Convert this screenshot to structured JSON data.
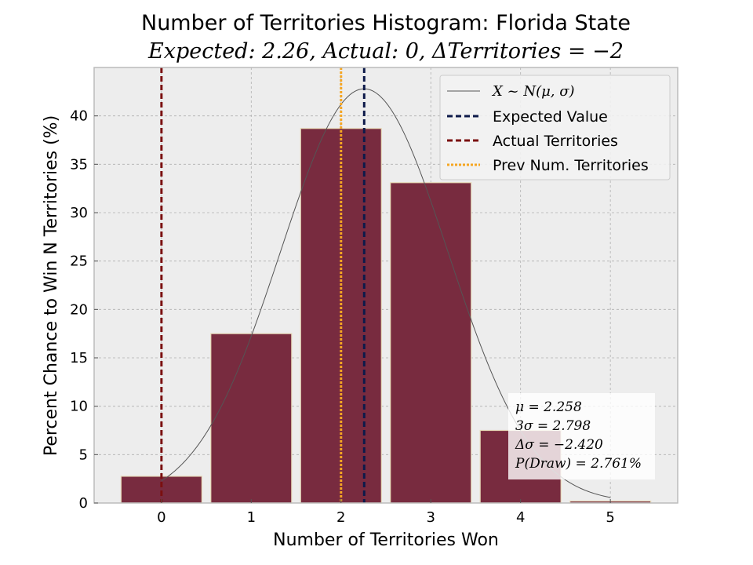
{
  "chart_data": {
    "type": "bar",
    "title": "Number of Territories Histogram: Florida State",
    "subtitle": "Expected: 2.26, Actual: 0, ΔTerritories = −2",
    "xlabel": "Number of Territories Won",
    "ylabel": "Percent Chance to Win N Territories (%)",
    "categories": [
      "0",
      "1",
      "2",
      "3",
      "4",
      "5"
    ],
    "x": [
      0,
      1,
      2,
      3,
      4,
      5
    ],
    "values": [
      2.761,
      17.5,
      38.7,
      33.1,
      7.5,
      0.2
    ],
    "xlim": [
      -0.75,
      5.75
    ],
    "ylim": [
      0,
      45
    ],
    "yticks": [
      0,
      5,
      10,
      15,
      20,
      25,
      30,
      35,
      40
    ],
    "grid": true,
    "normal_curve": {
      "mu": 2.258,
      "sigma": 0.9327,
      "peak_percent": 42.8
    },
    "vlines": [
      {
        "name": "Expected Value",
        "x": 2.258,
        "color": "#0d1a4a",
        "style": "dashed"
      },
      {
        "name": "Actual Territories",
        "x": 0,
        "color": "#7b1010",
        "style": "dashed"
      },
      {
        "name": "Prev Num. Territories",
        "x": 2,
        "color": "#f5a623",
        "style": "dotted"
      }
    ],
    "legend": {
      "position": "top-right",
      "entries": [
        "X ~ N(μ, σ)",
        "Expected Value",
        "Actual Territories",
        "Prev Num. Territories"
      ]
    },
    "stats_box": [
      "μ = 2.258",
      "3σ = 2.798",
      "Δσ = −2.420",
      "P(Draw) = 2.761%"
    ],
    "colors": {
      "bar": "#782b3f",
      "bar_edge": "#e6d9b8",
      "plot_bg": "#ededed",
      "grid": "#b0b0b0",
      "curve": "#555555"
    }
  }
}
